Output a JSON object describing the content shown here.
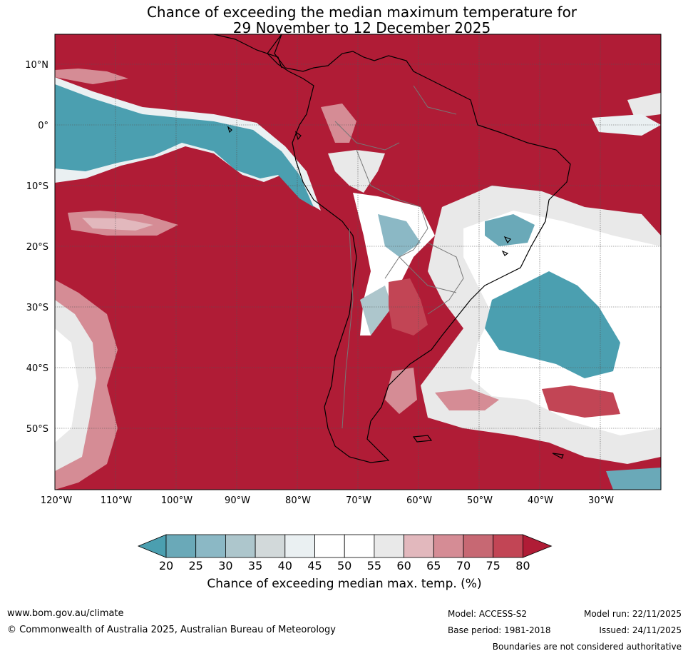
{
  "title_line1": "Chance of exceeding the median maximum temperature for",
  "title_line2": "29 November to 12 December 2025",
  "lat_labels": [
    "10°N",
    "0°",
    "10°S",
    "20°S",
    "30°S",
    "40°S",
    "50°S"
  ],
  "lon_labels": [
    "120°W",
    "110°W",
    "100°W",
    "90°W",
    "80°W",
    "70°W",
    "60°W",
    "50°W",
    "40°W",
    "30°W"
  ],
  "colorbar": {
    "label": "Chance of exceeding median max. temp. (%)",
    "ticks": [
      "20",
      "25",
      "30",
      "35",
      "40",
      "45",
      "50",
      "55",
      "60",
      "65",
      "70",
      "75",
      "80"
    ],
    "colors": [
      "#4b9fb0",
      "#6aa9b8",
      "#8bb8c5",
      "#adc6cc",
      "#d2d9da",
      "#eaf0f2",
      "#ffffff",
      "#ffffff",
      "#e9e9e9",
      "#e2b8bd",
      "#d58c95",
      "#c76873",
      "#c24555",
      "#b01c36"
    ]
  },
  "colors": {
    "hot": "#b01c36",
    "cold": "#4b9fb0"
  },
  "footer": {
    "website": "www.bom.gov.au/climate",
    "copyright": "© Commonwealth of Australia 2025, Australian Bureau of Meteorology",
    "model": "Model: ACCESS-S2",
    "base_period": "Base period: 1981-2018",
    "model_run": "Model run: 22/11/2025",
    "issued": "Issued: 24/11/2025",
    "boundaries": "Boundaries are not considered authoritative"
  }
}
